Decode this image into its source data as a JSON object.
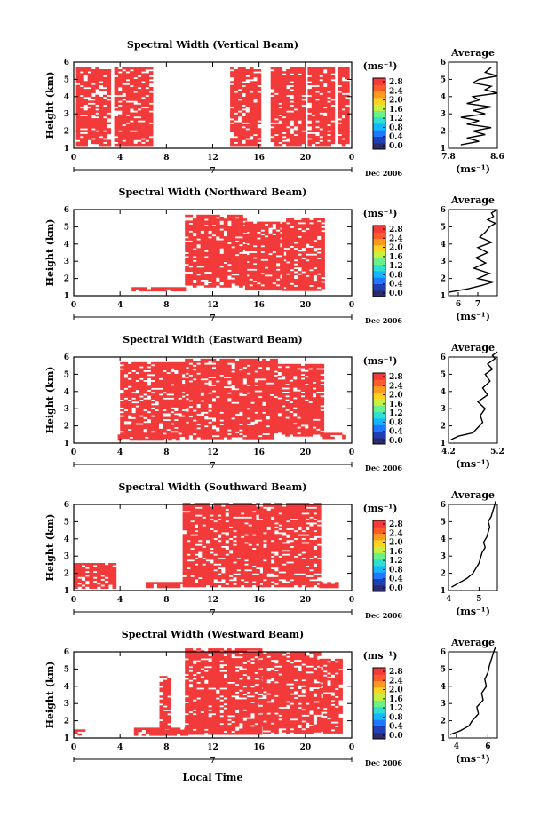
{
  "shared": {
    "height_label": "Height (km)",
    "unit_label": "(ms⁻¹)",
    "average_title": "Average",
    "date_label": "Dec 2006",
    "day_label": "7",
    "xlabel": "Local Time",
    "x_ticks": [
      "0",
      "4",
      "8",
      "12",
      "16",
      "20",
      "0"
    ],
    "y_ticks": [
      "1",
      "2",
      "3",
      "4",
      "5",
      "6"
    ],
    "colorbar_ticks": [
      "0.0",
      "0.4",
      "0.8",
      "1.2",
      "1.6",
      "2.0",
      "2.4",
      "2.8"
    ],
    "colorbar_colors": [
      "#2b2b6b",
      "#1f3fb5",
      "#1f78ff",
      "#14b8ff",
      "#2fe0d0",
      "#6cf08a",
      "#c8f040",
      "#ffd21f",
      "#ff9a1f",
      "#ff5a2a",
      "#f23a3a"
    ],
    "data_color": "#f23a3a"
  },
  "chart_data": [
    {
      "type": "heatmap",
      "title": "Spectral Width (Vertical Beam)",
      "xlabel": "Local Time",
      "ylabel": "Height (km)",
      "xlim": [
        0,
        24
      ],
      "ylim": [
        1,
        6
      ],
      "blocks": [
        [
          0.2,
          3.0,
          1.2,
          5.7
        ],
        [
          3.5,
          6.6,
          1.2,
          5.7
        ],
        [
          13.5,
          16.0,
          1.2,
          5.7
        ],
        [
          17.0,
          19.8,
          1.2,
          5.7
        ],
        [
          20.2,
          22.3,
          1.2,
          5.7
        ],
        [
          22.8,
          23.6,
          1.2,
          5.7
        ]
      ],
      "profile": {
        "xlim": [
          7.8,
          8.6
        ],
        "x_ticks": [
          "7.8",
          "8.6"
        ],
        "x": [
          8.0,
          8.3,
          8.1,
          8.4,
          8.2,
          8.5,
          8.1,
          8.3,
          8.0,
          8.4,
          8.2,
          8.5,
          8.1,
          8.3,
          8.2,
          8.6,
          8.4,
          8.5,
          8.2,
          8.3,
          8.6,
          8.4,
          8.5
        ],
        "y": [
          1.2,
          1.4,
          1.6,
          1.8,
          2.0,
          2.2,
          2.4,
          2.6,
          2.8,
          3.0,
          3.2,
          3.4,
          3.6,
          3.8,
          4.0,
          4.2,
          4.4,
          4.6,
          4.8,
          5.0,
          5.2,
          5.4,
          5.7
        ]
      }
    },
    {
      "type": "heatmap",
      "title": "Spectral Width (Northward Beam)",
      "xlabel": "Local Time",
      "ylabel": "Height (km)",
      "xlim": [
        0,
        24
      ],
      "ylim": [
        1,
        6
      ],
      "blocks": [
        [
          9.6,
          14.8,
          1.5,
          5.7
        ],
        [
          14.8,
          18.0,
          1.4,
          5.3
        ],
        [
          18.0,
          21.6,
          1.3,
          5.5
        ],
        [
          5.0,
          9.6,
          1.3,
          1.5
        ]
      ],
      "profile": {
        "xlim": [
          5.5,
          8
        ],
        "x_ticks": [
          "6",
          "7"
        ],
        "x": [
          5.5,
          6.5,
          7.2,
          7.8,
          7.0,
          7.6,
          6.8,
          7.4,
          6.9,
          7.5,
          7.0,
          7.7,
          7.1,
          7.4,
          7.6,
          7.9,
          7.5,
          7.8,
          7.7,
          8.0
        ],
        "y": [
          1.2,
          1.4,
          1.6,
          1.8,
          2.0,
          2.3,
          2.6,
          2.9,
          3.2,
          3.5,
          3.8,
          4.1,
          4.4,
          4.7,
          5.0,
          5.2,
          5.4,
          5.6,
          5.8,
          6.0
        ]
      }
    },
    {
      "type": "heatmap",
      "title": "Spectral Width (Eastward Beam)",
      "xlabel": "Local Time",
      "ylabel": "Height (km)",
      "xlim": [
        0,
        24
      ],
      "ylim": [
        1,
        6
      ],
      "blocks": [
        [
          4.0,
          9.6,
          1.4,
          5.7
        ],
        [
          9.6,
          17.6,
          1.3,
          5.9
        ],
        [
          17.6,
          21.5,
          1.4,
          5.6
        ],
        [
          21.5,
          23.5,
          1.3,
          1.6
        ],
        [
          3.8,
          9.0,
          1.2,
          1.5
        ]
      ],
      "profile": {
        "xlim": [
          4.2,
          5.2
        ],
        "x_ticks": [
          "4.2",
          "5.2"
        ],
        "x": [
          4.25,
          4.4,
          4.7,
          4.8,
          4.9,
          4.85,
          4.95,
          4.8,
          5.0,
          4.9,
          5.05,
          4.95,
          5.1,
          5.0,
          5.15,
          5.1,
          5.2
        ],
        "y": [
          1.2,
          1.4,
          1.6,
          1.9,
          2.2,
          2.6,
          3.0,
          3.4,
          3.8,
          4.2,
          4.6,
          5.0,
          5.3,
          5.6,
          5.9,
          6.1,
          6.3
        ]
      }
    },
    {
      "type": "heatmap",
      "title": "Spectral Width (Southward Beam)",
      "xlabel": "Local Time",
      "ylabel": "Height (km)",
      "xlim": [
        0,
        24
      ],
      "ylim": [
        1,
        6
      ],
      "blocks": [
        [
          9.4,
          16.0,
          1.2,
          6.1
        ],
        [
          16.0,
          21.2,
          1.2,
          6.1
        ],
        [
          21.2,
          22.8,
          1.2,
          1.5
        ],
        [
          0.0,
          3.5,
          1.2,
          2.6
        ],
        [
          6.2,
          9.4,
          1.2,
          1.5
        ]
      ],
      "profile": {
        "xlim": [
          4,
          5.6
        ],
        "x_ticks": [
          "4",
          "5"
        ],
        "x": [
          4.1,
          4.3,
          4.6,
          4.8,
          4.9,
          5.0,
          5.05,
          5.1,
          5.2,
          5.15,
          5.25,
          5.3,
          5.35,
          5.3,
          5.4,
          5.45,
          5.5,
          5.55
        ],
        "y": [
          1.2,
          1.4,
          1.7,
          2.0,
          2.3,
          2.6,
          2.9,
          3.2,
          3.5,
          3.8,
          4.1,
          4.4,
          4.7,
          5.0,
          5.3,
          5.6,
          5.9,
          6.2
        ]
      }
    },
    {
      "type": "heatmap",
      "title": "Spectral Width (Westward Beam)",
      "xlabel": "Local Time",
      "ylabel": "Height (km)",
      "xlim": [
        0,
        24
      ],
      "ylim": [
        1,
        6
      ],
      "blocks": [
        [
          9.6,
          16.0,
          1.2,
          6.2
        ],
        [
          16.0,
          21.2,
          1.3,
          6.0
        ],
        [
          21.2,
          23.2,
          1.3,
          5.6
        ],
        [
          0.0,
          1.0,
          1.2,
          1.5
        ],
        [
          5.2,
          9.6,
          1.2,
          1.6
        ],
        [
          7.4,
          8.2,
          1.6,
          4.6
        ]
      ],
      "profile": {
        "xlim": [
          3.5,
          6.6
        ],
        "x_ticks": [
          "4",
          "6"
        ],
        "x": [
          3.6,
          4.2,
          4.8,
          5.0,
          5.4,
          5.3,
          5.7,
          5.6,
          5.9,
          5.8,
          6.0,
          6.1,
          6.2,
          6.3,
          6.4,
          6.5
        ],
        "y": [
          1.2,
          1.4,
          1.7,
          2.0,
          2.4,
          2.8,
          3.2,
          3.6,
          4.0,
          4.4,
          4.8,
          5.2,
          5.5,
          5.8,
          6.1,
          6.3
        ]
      }
    }
  ]
}
